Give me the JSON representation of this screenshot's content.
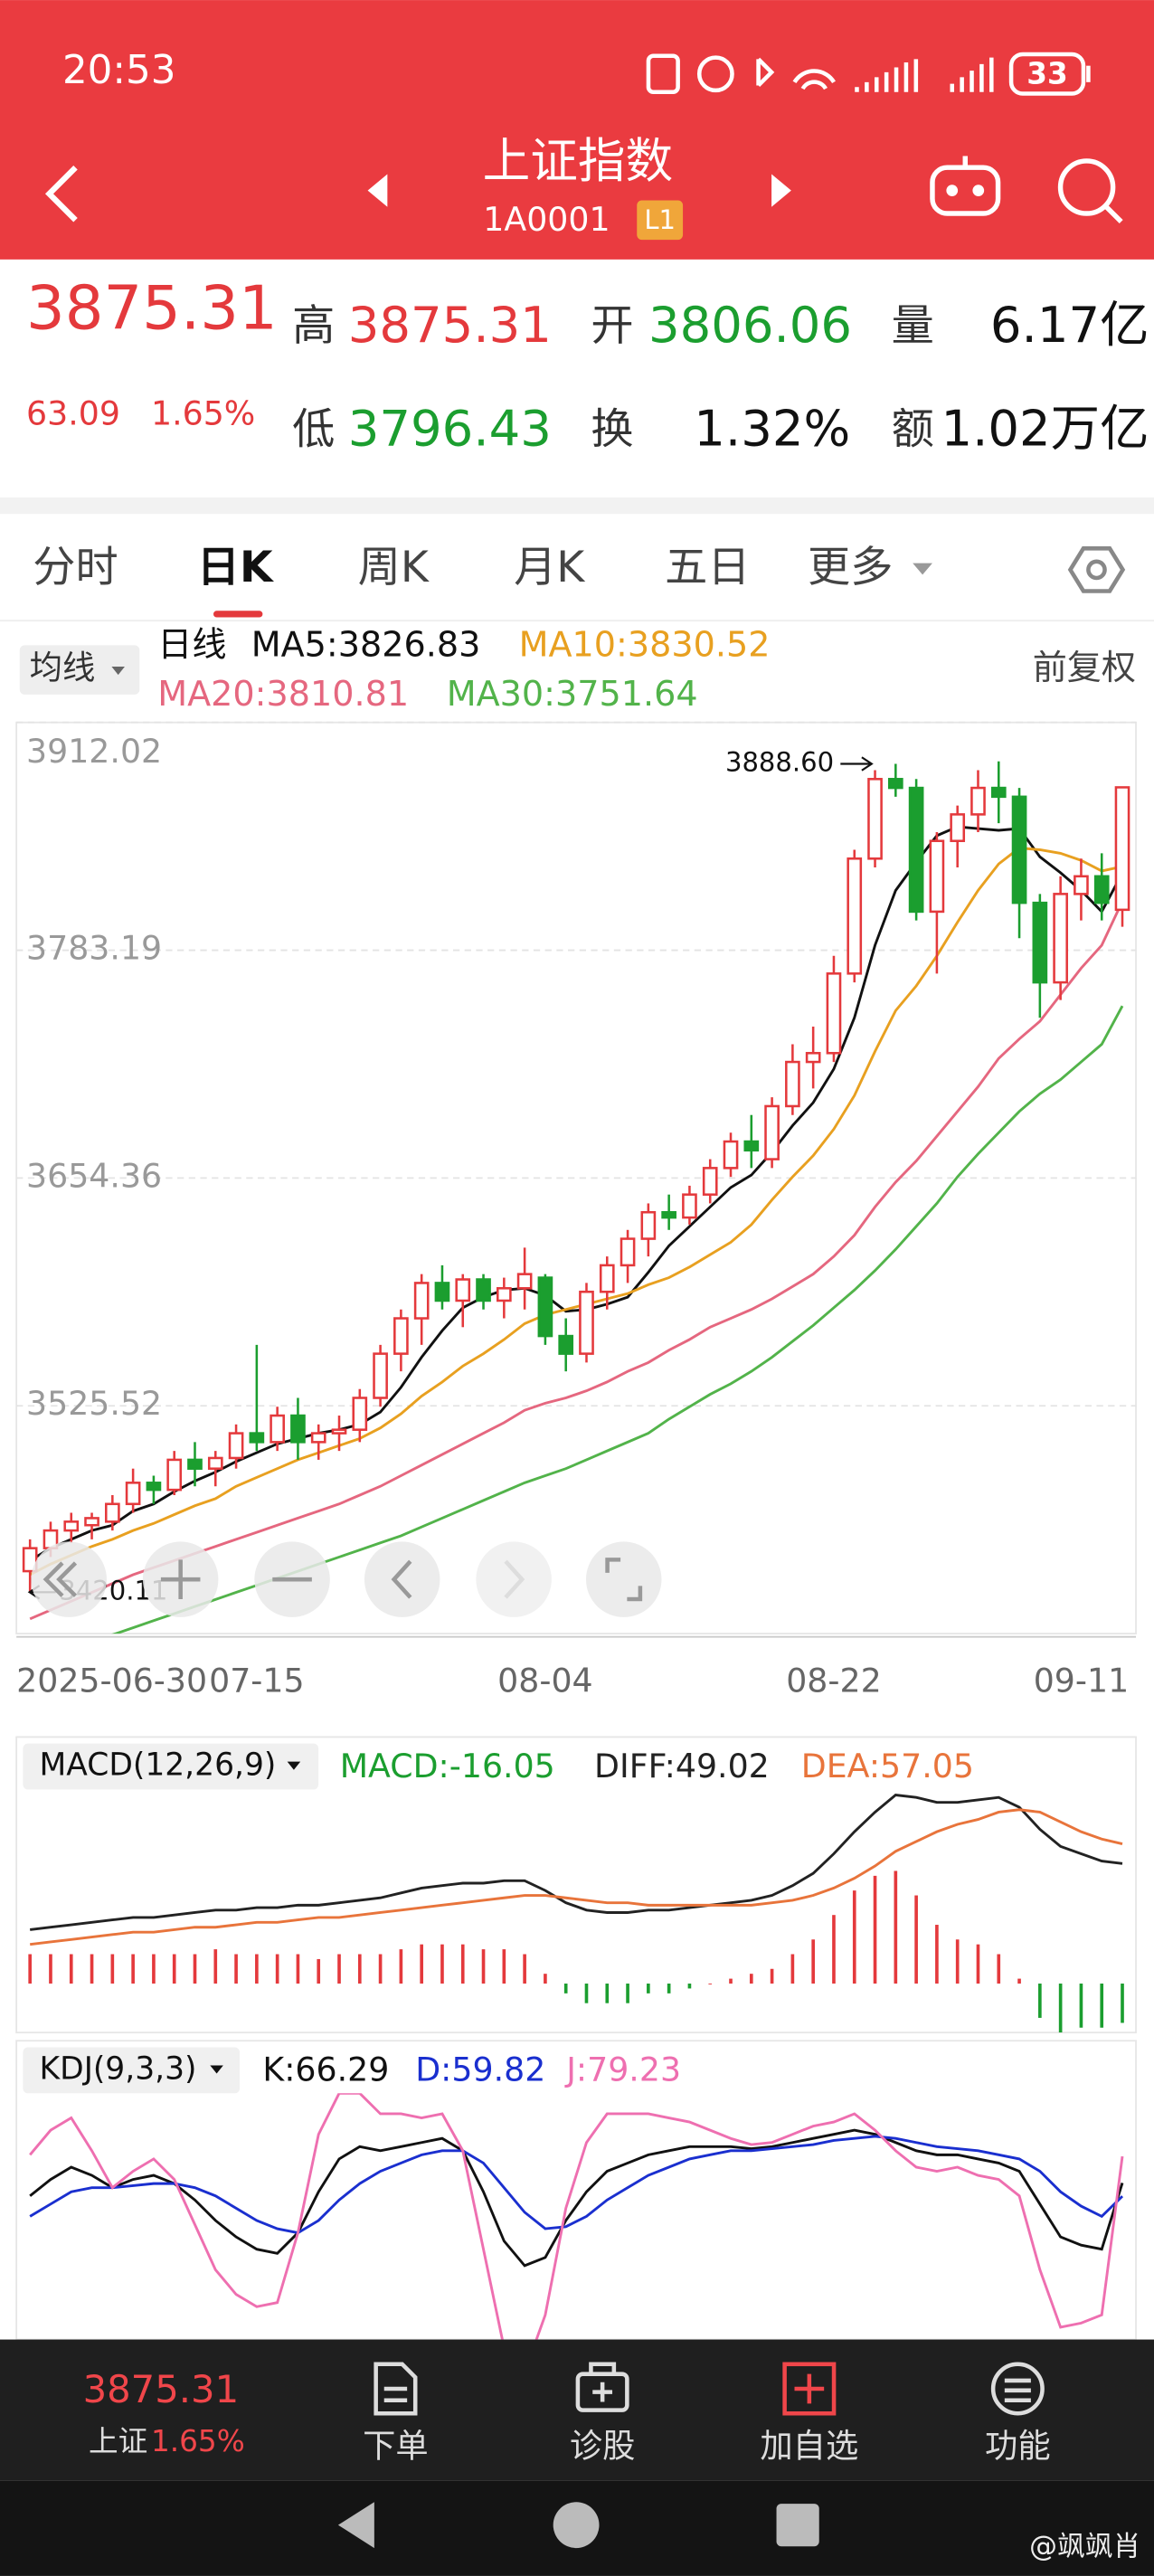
{
  "status_bar": {
    "time": "20:53",
    "battery": "33"
  },
  "header": {
    "title": "上证指数",
    "code": "1A0001",
    "level": "L1"
  },
  "quote": {
    "price": "3875.31",
    "change": "63.09",
    "change_pct": "1.65%",
    "fields": [
      {
        "label": "高",
        "value": "3875.31"
      },
      {
        "label": "开",
        "value": "3806.06"
      },
      {
        "label": "量",
        "value": "6.17亿"
      },
      {
        "label": "低",
        "value": "3796.43"
      },
      {
        "label": "换",
        "value": "1.32%"
      },
      {
        "label": "额",
        "value": "1.02万亿"
      }
    ]
  },
  "tabs": [
    "分时",
    "日K",
    "周K",
    "月K",
    "五日",
    "更多"
  ],
  "chart_controls": {
    "ma_button": "均线",
    "period": "日线",
    "adjust": "前复权"
  },
  "chart_data": [
    {
      "type": "candlestick",
      "categories": [
        "2025-06-30",
        null,
        null,
        null,
        null,
        null,
        null,
        null,
        null,
        null,
        null,
        "07-15",
        null,
        null,
        null,
        null,
        null,
        null,
        null,
        null,
        null,
        null,
        null,
        null,
        null,
        "08-04",
        null,
        null,
        null,
        null,
        null,
        null,
        null,
        null,
        null,
        null,
        null,
        null,
        null,
        "08-22",
        null,
        null,
        null,
        null,
        null,
        null,
        null,
        null,
        null,
        null,
        null,
        "09-11",
        null,
        null
      ],
      "open": [
        3432,
        3445,
        3455,
        3458,
        3460,
        3470,
        3482,
        3478,
        3495,
        3490,
        3496,
        3510,
        3505,
        3520,
        3505,
        3510,
        3512,
        3530,
        3555,
        3575,
        3595,
        3585,
        3597,
        3585,
        3592,
        3598,
        3565,
        3555,
        3590,
        3605,
        3620,
        3635,
        3632,
        3645,
        3660,
        3675,
        3665,
        3695,
        3720,
        3725,
        3770,
        3835,
        3880,
        3875,
        3805,
        3845,
        3860,
        3875,
        3870,
        3810,
        3765,
        3815,
        3825,
        3806.06
      ],
      "high": [
        3450,
        3460,
        3465,
        3465,
        3475,
        3490,
        3486,
        3500,
        3505,
        3500,
        3515,
        3560,
        3525,
        3530,
        3515,
        3520,
        3535,
        3560,
        3580,
        3600,
        3605,
        3600,
        3600,
        3598,
        3615,
        3600,
        3575,
        3595,
        3610,
        3625,
        3640,
        3645,
        3650,
        3665,
        3680,
        3690,
        3700,
        3730,
        3740,
        3780,
        3840,
        3885,
        3888.6,
        3880,
        3850,
        3865,
        3885,
        3890,
        3875,
        3815,
        3825,
        3835,
        3838,
        3875.31
      ],
      "low": [
        3420.11,
        3440,
        3448,
        3450,
        3455,
        3465,
        3470,
        3475,
        3480,
        3480,
        3490,
        3500,
        3500,
        3495,
        3495,
        3500,
        3505,
        3525,
        3545,
        3560,
        3580,
        3570,
        3580,
        3575,
        3580,
        3560,
        3545,
        3550,
        3580,
        3595,
        3610,
        3625,
        3628,
        3640,
        3655,
        3660,
        3660,
        3690,
        3705,
        3720,
        3765,
        3830,
        3870,
        3800,
        3770,
        3830,
        3850,
        3855,
        3790,
        3745,
        3755,
        3800,
        3800,
        3796.43
      ],
      "close": [
        3445,
        3455,
        3460,
        3462,
        3470,
        3482,
        3478,
        3495,
        3490,
        3496,
        3510,
        3505,
        3520,
        3505,
        3510,
        3512,
        3530,
        3555,
        3575,
        3595,
        3585,
        3597,
        3585,
        3592,
        3600,
        3565,
        3555,
        3590,
        3605,
        3620,
        3635,
        3632,
        3645,
        3660,
        3675,
        3670,
        3695,
        3720,
        3725,
        3770,
        3835,
        3880,
        3875,
        3805,
        3845,
        3860,
        3875,
        3870,
        3810,
        3765,
        3815,
        3825,
        3810,
        3875.31
      ],
      "up_color": "#e4393c",
      "down_color": "#1b9e2f",
      "series": [
        {
          "name": "MA5:3826.83",
          "color": "#111111",
          "values": [
            3438,
            3445,
            3450,
            3455,
            3458,
            3466,
            3470,
            3477,
            3483,
            3488,
            3494,
            3499,
            3504,
            3507,
            3510,
            3512,
            3515,
            3522,
            3536,
            3553,
            3568,
            3581,
            3587,
            3591,
            3592,
            3588,
            3579,
            3580,
            3583,
            3587,
            3601,
            3616,
            3627,
            3638,
            3649,
            3656,
            3669,
            3684,
            3697,
            3716,
            3745,
            3786,
            3817,
            3833,
            3848,
            3853,
            3852,
            3851,
            3852,
            3836,
            3827,
            3817,
            3805,
            3826.83
          ]
        },
        {
          "name": "MA10:3830.52",
          "color": "#e8a020",
          "values": [
            3430,
            3436,
            3441,
            3446,
            3450,
            3455,
            3459,
            3464,
            3469,
            3473,
            3480,
            3485,
            3490,
            3495,
            3499,
            3503,
            3507,
            3513,
            3521,
            3531,
            3539,
            3548,
            3555,
            3563,
            3572,
            3577,
            3580,
            3583,
            3586,
            3589,
            3594,
            3598,
            3604,
            3611,
            3618,
            3628,
            3642,
            3655,
            3667,
            3682,
            3701,
            3726,
            3749,
            3763,
            3780,
            3799,
            3817,
            3832,
            3841,
            3840,
            3838,
            3834,
            3828,
            3830.52
          ]
        },
        {
          "name": "MA20:3810.81",
          "color": "#e5677f",
          "values": [
            3405,
            3410,
            3415,
            3420,
            3425,
            3430,
            3434,
            3438,
            3442,
            3446,
            3450,
            3454,
            3458,
            3462,
            3466,
            3470,
            3475,
            3480,
            3486,
            3492,
            3498,
            3504,
            3510,
            3516,
            3523,
            3527,
            3530,
            3534,
            3539,
            3545,
            3550,
            3557,
            3563,
            3570,
            3575,
            3580,
            3586,
            3593,
            3600,
            3610,
            3622,
            3638,
            3652,
            3664,
            3678,
            3692,
            3706,
            3722,
            3733,
            3743,
            3758,
            3773,
            3786,
            3810.81
          ]
        },
        {
          "name": "MA30:3751.64",
          "color": "#52b34a",
          "values": [
            3380,
            3384,
            3388,
            3392,
            3396,
            3400,
            3404,
            3408,
            3412,
            3416,
            3420,
            3424,
            3428,
            3432,
            3436,
            3440,
            3444,
            3448,
            3452,
            3457,
            3462,
            3467,
            3472,
            3477,
            3482,
            3486,
            3490,
            3495,
            3500,
            3505,
            3510,
            3518,
            3525,
            3532,
            3538,
            3545,
            3553,
            3562,
            3571,
            3581,
            3591,
            3602,
            3614,
            3627,
            3640,
            3655,
            3668,
            3680,
            3692,
            3702,
            3710,
            3720,
            3730,
            3751.64
          ]
        }
      ],
      "ylim": [
        3396.7,
        3912.02
      ],
      "yticks": [
        3912.02,
        3783.19,
        3654.36,
        3525.52
      ],
      "grid": true,
      "annotations": [
        {
          "label": "3888.60",
          "value": 3888.6
        },
        {
          "label": "3420.11",
          "value": 3420.11
        }
      ]
    },
    {
      "type": "macd",
      "title": "MACD(12,26,9)",
      "series": [
        {
          "name": "MACD:-16.05",
          "kind": "bar",
          "color": "#e4393c",
          "down_color": "#1b9e2f",
          "values": [
            12,
            12,
            12,
            12,
            12,
            12,
            12,
            12,
            12,
            14,
            12,
            12,
            12,
            12,
            10,
            12,
            12,
            12,
            14,
            16,
            16,
            16,
            14,
            14,
            12,
            4,
            -4,
            -8,
            -8,
            -8,
            -4,
            -4,
            -2,
            0,
            2,
            4,
            6,
            12,
            18,
            28,
            38,
            44,
            46,
            36,
            24,
            18,
            16,
            12,
            2,
            -14,
            -20,
            -18,
            -18,
            -16.05
          ]
        },
        {
          "name": "DIFF:49.02",
          "kind": "line",
          "color": "#222222",
          "values": [
            22,
            23,
            24,
            25,
            26,
            27,
            27,
            28,
            29,
            30,
            30,
            31,
            31,
            32,
            32,
            33,
            34,
            35,
            37,
            39,
            40,
            41,
            41,
            42,
            42,
            38,
            33,
            30,
            29,
            29,
            30,
            30,
            31,
            32,
            33,
            34,
            36,
            40,
            45,
            53,
            62,
            70,
            77,
            76,
            74,
            74,
            75,
            76,
            72,
            63,
            56,
            53,
            50,
            49.02
          ]
        },
        {
          "name": "DEA:57.05",
          "kind": "line",
          "color": "#e8743b",
          "values": [
            16,
            17,
            18,
            19,
            20,
            21,
            21,
            22,
            23,
            23,
            24,
            25,
            25,
            26,
            27,
            27,
            28,
            29,
            30,
            31,
            32,
            33,
            34,
            35,
            36,
            36,
            35,
            34,
            33,
            33,
            32,
            32,
            32,
            32,
            32,
            32,
            33,
            34,
            36,
            39,
            43,
            48,
            54,
            58,
            62,
            65,
            67,
            70,
            71,
            70,
            66,
            62,
            59,
            57.05
          ]
        }
      ],
      "ylim": [
        -22,
        100
      ]
    },
    {
      "type": "line",
      "title": "KDJ(9,3,3)",
      "series": [
        {
          "name": "K:66.29",
          "color": "#111111",
          "values": [
            60,
            68,
            74,
            70,
            64,
            68,
            70,
            66,
            58,
            48,
            40,
            34,
            32,
            42,
            62,
            78,
            84,
            82,
            84,
            86,
            88,
            82,
            62,
            38,
            26,
            30,
            48,
            62,
            72,
            76,
            80,
            82,
            84,
            84,
            84,
            83,
            84,
            86,
            88,
            90,
            92,
            90,
            86,
            82,
            80,
            80,
            78,
            76,
            72,
            56,
            40,
            36,
            34,
            66.29
          ]
        },
        {
          "name": "D:59.82",
          "color": "#1a2fcf",
          "values": [
            50,
            56,
            62,
            64,
            64,
            65,
            66,
            66,
            64,
            60,
            54,
            48,
            44,
            42,
            48,
            58,
            66,
            72,
            76,
            80,
            82,
            82,
            76,
            64,
            52,
            44,
            45,
            50,
            58,
            64,
            70,
            74,
            78,
            80,
            82,
            82,
            83,
            84,
            85,
            87,
            88,
            89,
            88,
            86,
            84,
            83,
            82,
            80,
            78,
            72,
            62,
            55,
            50,
            59.82
          ]
        },
        {
          "name": "J:79.23",
          "color": "#ee6fb0",
          "values": [
            80,
            92,
            98,
            82,
            64,
            72,
            78,
            68,
            46,
            24,
            12,
            6,
            8,
            42,
            90,
            110,
            110,
            100,
            100,
            98,
            100,
            82,
            34,
            -14,
            -26,
            2,
            54,
            86,
            100,
            100,
            100,
            98,
            96,
            92,
            88,
            85,
            86,
            90,
            94,
            96,
            100,
            92,
            82,
            74,
            72,
            74,
            70,
            68,
            60,
            24,
            -4,
            -2,
            2,
            79.23
          ]
        }
      ],
      "ylim": [
        -10,
        110
      ]
    }
  ],
  "bottom_nav": {
    "index_price": "3875.31",
    "index_name": "上证",
    "index_pct": "1.65%",
    "items": [
      "下单",
      "诊股",
      "加自选",
      "功能"
    ]
  },
  "watermark": "@飒飒肖"
}
